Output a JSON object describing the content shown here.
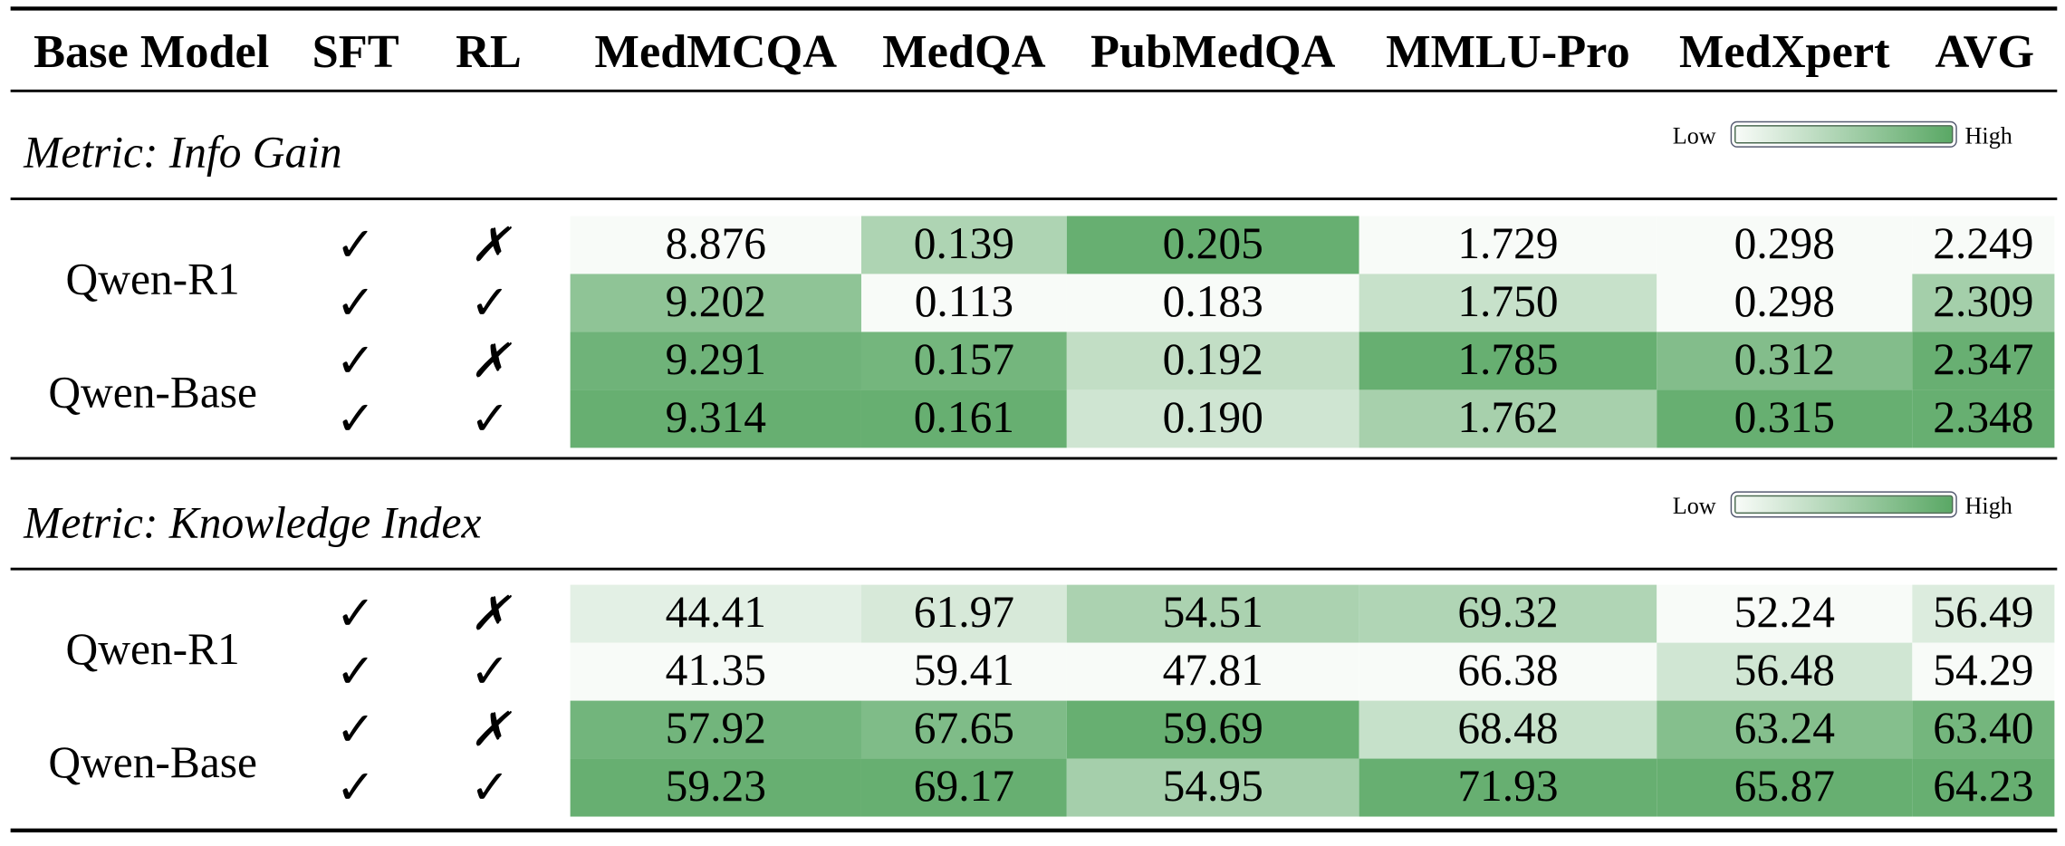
{
  "headers": {
    "base_model": "Base Model",
    "sft": "SFT",
    "rl": "RL",
    "datasets": [
      "MedMCQA",
      "MedQA",
      "PubMedQA",
      "MMLU-Pro",
      "MedXpert",
      "AVG"
    ]
  },
  "legend": {
    "low": "Low",
    "high": "High",
    "color_low": "#f8fbf8",
    "color_high": "#5aa865"
  },
  "sections": [
    {
      "title": "Metric: Info Gain",
      "models": [
        "Qwen-R1",
        "Qwen-Base"
      ],
      "rows": [
        {
          "sft": "✓",
          "rl": "✗",
          "values": [
            "8.876",
            "0.139",
            "0.205",
            "1.729",
            "0.298",
            "2.249"
          ]
        },
        {
          "sft": "✓",
          "rl": "✓",
          "values": [
            "9.202",
            "0.113",
            "0.183",
            "1.750",
            "0.298",
            "2.309"
          ]
        },
        {
          "sft": "✓",
          "rl": "✗",
          "values": [
            "9.291",
            "0.157",
            "0.192",
            "1.785",
            "0.312",
            "2.347"
          ]
        },
        {
          "sft": "✓",
          "rl": "✓",
          "values": [
            "9.314",
            "0.161",
            "0.190",
            "1.762",
            "0.315",
            "2.348"
          ]
        }
      ]
    },
    {
      "title": "Metric: Knowledge Index",
      "models": [
        "Qwen-R1",
        "Qwen-Base"
      ],
      "rows": [
        {
          "sft": "✓",
          "rl": "✗",
          "values": [
            "44.41",
            "61.97",
            "54.51",
            "69.32",
            "52.24",
            "56.49"
          ]
        },
        {
          "sft": "✓",
          "rl": "✓",
          "values": [
            "41.35",
            "59.41",
            "47.81",
            "66.38",
            "56.48",
            "54.29"
          ]
        },
        {
          "sft": "✓",
          "rl": "✗",
          "values": [
            "57.92",
            "67.65",
            "59.69",
            "68.48",
            "63.24",
            "63.40"
          ]
        },
        {
          "sft": "✓",
          "rl": "✓",
          "values": [
            "59.23",
            "69.17",
            "54.95",
            "71.93",
            "65.87",
            "64.23"
          ]
        }
      ]
    }
  ]
}
